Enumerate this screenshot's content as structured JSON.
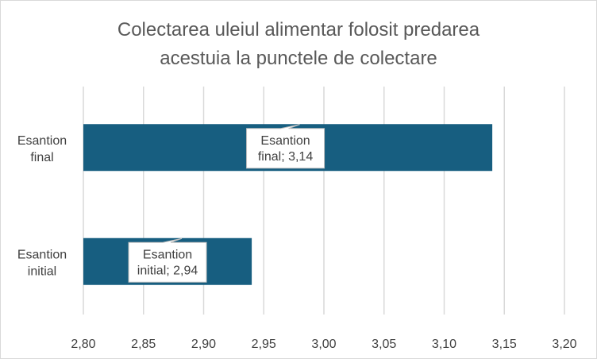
{
  "chart_data": {
    "type": "bar",
    "orientation": "horizontal",
    "title": "Colectarea uleiul alimentar folosit predarea acestuia la punctele de colectare",
    "title_lines": [
      "Colectarea uleiul alimentar folosit predarea",
      "acestuia la punctele de colectare"
    ],
    "categories": [
      "Esantion final",
      "Esantion initial"
    ],
    "category_label_lines": [
      [
        "Esantion",
        "final"
      ],
      [
        "Esantion",
        "initial"
      ]
    ],
    "values": [
      3.14,
      2.94
    ],
    "data_labels": [
      [
        "Esantion",
        "final; 3,14"
      ],
      [
        "Esantion",
        "initial; 2,94"
      ]
    ],
    "xlim": [
      2.8,
      3.2
    ],
    "xticks": [
      "2,80",
      "2,85",
      "2,90",
      "2,95",
      "3,00",
      "3,05",
      "3,10",
      "3,15",
      "3,20"
    ],
    "xlabel": "",
    "ylabel": "",
    "grid": true,
    "legend": "none",
    "colors": {
      "bar": "#175e80",
      "grid": "#d9d9d9",
      "text": "#404040",
      "title": "#595959",
      "label_border": "#bfbfbf"
    }
  }
}
